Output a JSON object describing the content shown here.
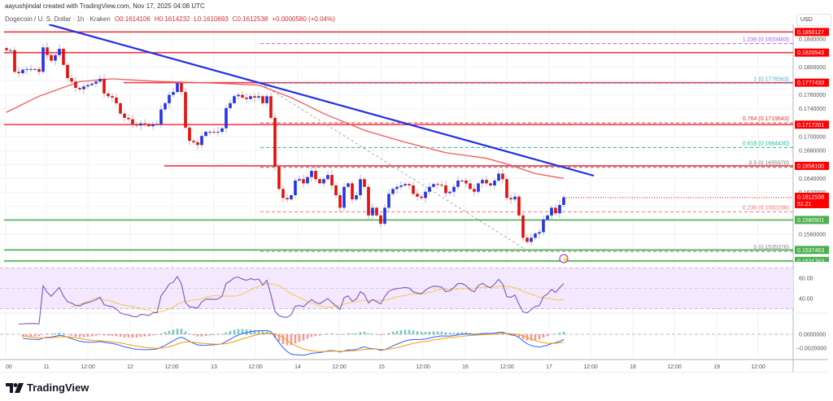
{
  "header": {
    "attribution": "aayushjindal created with TradingView.com, Nov 17, 2025 04:08 UTC",
    "symbol": "Dogecoin / U. S. Dollar · 1h · Kraken",
    "open": "O0.1614106",
    "high": "H0.1614232",
    "low": "L0.1610693",
    "close": "C0.1612538",
    "change": "+0.0000580 (+0.04%)"
  },
  "currency_button": "USD",
  "brand": "TradingView",
  "colors": {
    "up": "#2433e6",
    "down": "#e3120b",
    "resistance": "#f23645",
    "support": "#4caf50",
    "trendline": "#1f2ee8",
    "ma": "#f05a5a",
    "rsi": "#7e57c2",
    "rsi_ma": "#f7c948",
    "macd": "#2962ff",
    "signal": "#ff9800"
  },
  "chart_data": {
    "type": "candlestick",
    "timeframe": "1h",
    "x_tick_labels": [
      "00",
      "11",
      "12:00",
      "12",
      "12:00",
      "13",
      "12:00",
      "14",
      "12:00",
      "15",
      "12:00",
      "16",
      "12:00",
      "17",
      "12:00",
      "18",
      "12:00",
      "19",
      "12:00"
    ],
    "y_tick_labels": [
      "0.1840000",
      "0.1800000",
      "0.1760000",
      "0.1740000",
      "0.1700000",
      "0.1680000",
      "0.1640000",
      "0.1620000",
      "0.1560000"
    ],
    "ylim": [
      0.151,
      0.187
    ],
    "closes": [
      0.1824,
      0.1824,
      0.1793,
      0.1791,
      0.1796,
      0.1797,
      0.1797,
      0.1797,
      0.1793,
      0.1828,
      0.1817,
      0.1809,
      0.1817,
      0.1826,
      0.1803,
      0.1784,
      0.1779,
      0.177,
      0.1768,
      0.1772,
      0.1774,
      0.1776,
      0.1779,
      0.1783,
      0.1762,
      0.1758,
      0.1756,
      0.1748,
      0.1733,
      0.1727,
      0.1725,
      0.1718,
      0.1716,
      0.1719,
      0.1718,
      0.1715,
      0.1718,
      0.1718,
      0.1739,
      0.1748,
      0.176,
      0.1764,
      0.1777,
      0.1764,
      0.1713,
      0.1694,
      0.1692,
      0.1688,
      0.1701,
      0.1707,
      0.1707,
      0.1706,
      0.1707,
      0.1712,
      0.1741,
      0.1748,
      0.1758,
      0.176,
      0.1756,
      0.1754,
      0.1758,
      0.1756,
      0.1758,
      0.1748,
      0.1758,
      0.1727,
      0.1657,
      0.1625,
      0.1612,
      0.161,
      0.1616,
      0.1637,
      0.1639,
      0.1633,
      0.1642,
      0.1651,
      0.1639,
      0.1633,
      0.1639,
      0.1645,
      0.163,
      0.1616,
      0.1598,
      0.1628,
      0.1633,
      0.161,
      0.1616,
      0.1639,
      0.1628,
      0.1587,
      0.1598,
      0.1587,
      0.1575,
      0.1598,
      0.1618,
      0.1625,
      0.1628,
      0.163,
      0.1632,
      0.163,
      0.1618,
      0.1614,
      0.1612,
      0.1621,
      0.1628,
      0.1632,
      0.1631,
      0.163,
      0.1619,
      0.1621,
      0.1628,
      0.1637,
      0.1637,
      0.1633,
      0.1625,
      0.1621,
      0.1633,
      0.1638,
      0.1633,
      0.163,
      0.1637,
      0.1647,
      0.1639,
      0.1612,
      0.161,
      0.1614,
      0.1587,
      0.1555,
      0.1549,
      0.1555,
      0.1561,
      0.1563,
      0.1581,
      0.1587,
      0.1598,
      0.159,
      0.1602,
      0.1613
    ],
    "moving_average": [
      [
        0,
        0.1735
      ],
      [
        8,
        0.1758
      ],
      [
        18,
        0.1779
      ],
      [
        26,
        0.1783
      ],
      [
        38,
        0.1779
      ],
      [
        50,
        0.1777
      ],
      [
        62,
        0.1774
      ],
      [
        70,
        0.1756
      ],
      [
        78,
        0.1733
      ],
      [
        88,
        0.1709
      ],
      [
        98,
        0.1692
      ],
      [
        108,
        0.1677
      ],
      [
        118,
        0.1669
      ],
      [
        124,
        0.1659
      ],
      [
        130,
        0.1647
      ],
      [
        137,
        0.164
      ]
    ],
    "trendline": [
      [
        10.4,
        0.1861
      ],
      [
        144.4,
        0.1644
      ]
    ],
    "fib_anchor_line": [
      [
        62.4,
        0.1776563
      ],
      [
        128.4,
        0.1535376
      ]
    ],
    "horizontal_levels": [
      {
        "price": 0.1850127,
        "label": "0.1850127",
        "kind": "resistance",
        "from": 0
      },
      {
        "price": 0.1820543,
        "label": "0.1820543",
        "kind": "resistance",
        "from": 0
      },
      {
        "price": 0.1777433,
        "label": "0.1777433",
        "kind": "resistance",
        "from": 29.4
      },
      {
        "price": 0.1717201,
        "label": "0.1717201",
        "kind": "resistance",
        "from": 0
      },
      {
        "price": 0.16581,
        "label": "0.1658100",
        "kind": "resistance",
        "from": 39.4
      },
      {
        "price": 0.1580501,
        "label": "0.1580501",
        "kind": "support",
        "from": 0
      },
      {
        "price": 0.1537463,
        "label": "0.1537463",
        "kind": "support",
        "from": 0
      },
      {
        "price": 0.1521763,
        "label": "0.1521763",
        "kind": "support",
        "from": 0
      }
    ],
    "fib_levels": [
      {
        "ratio": "1.236",
        "price": 0.1833483,
        "label": "1.236 (0.1833483)",
        "color": "#b15ee6"
      },
      {
        "ratio": "1",
        "price": 0.1776563,
        "label": "1 (0.1776563)",
        "color": "#5aa9d6"
      },
      {
        "ratio": "0.764",
        "price": 0.1719643,
        "label": "0.764 (0.1719643)",
        "color": "#e53935"
      },
      {
        "ratio": "0.618",
        "price": 0.168443,
        "label": "0.618 (0.1684430)",
        "color": "#26b89a"
      },
      {
        "ratio": "0.5",
        "price": 0.165597,
        "label": "0.5 (0.1655970)",
        "color": "#777777"
      },
      {
        "ratio": "0.236",
        "price": 0.1592296,
        "label": "0.236 (0.1592296)",
        "color": "#ef7a7a"
      },
      {
        "ratio": "0",
        "price": 0.1535376,
        "label": "0 (0.1535376)",
        "color": "#888888"
      }
    ],
    "last_price": {
      "value": 0.1612538,
      "label": "0.1612538",
      "countdown": "51:21"
    },
    "rsi": {
      "tick_labels": [
        "60.00",
        "40.00"
      ],
      "bands": [
        30,
        70
      ]
    },
    "macd": {
      "tick_labels": [
        "0.0000000",
        "−0.0020000"
      ]
    }
  }
}
